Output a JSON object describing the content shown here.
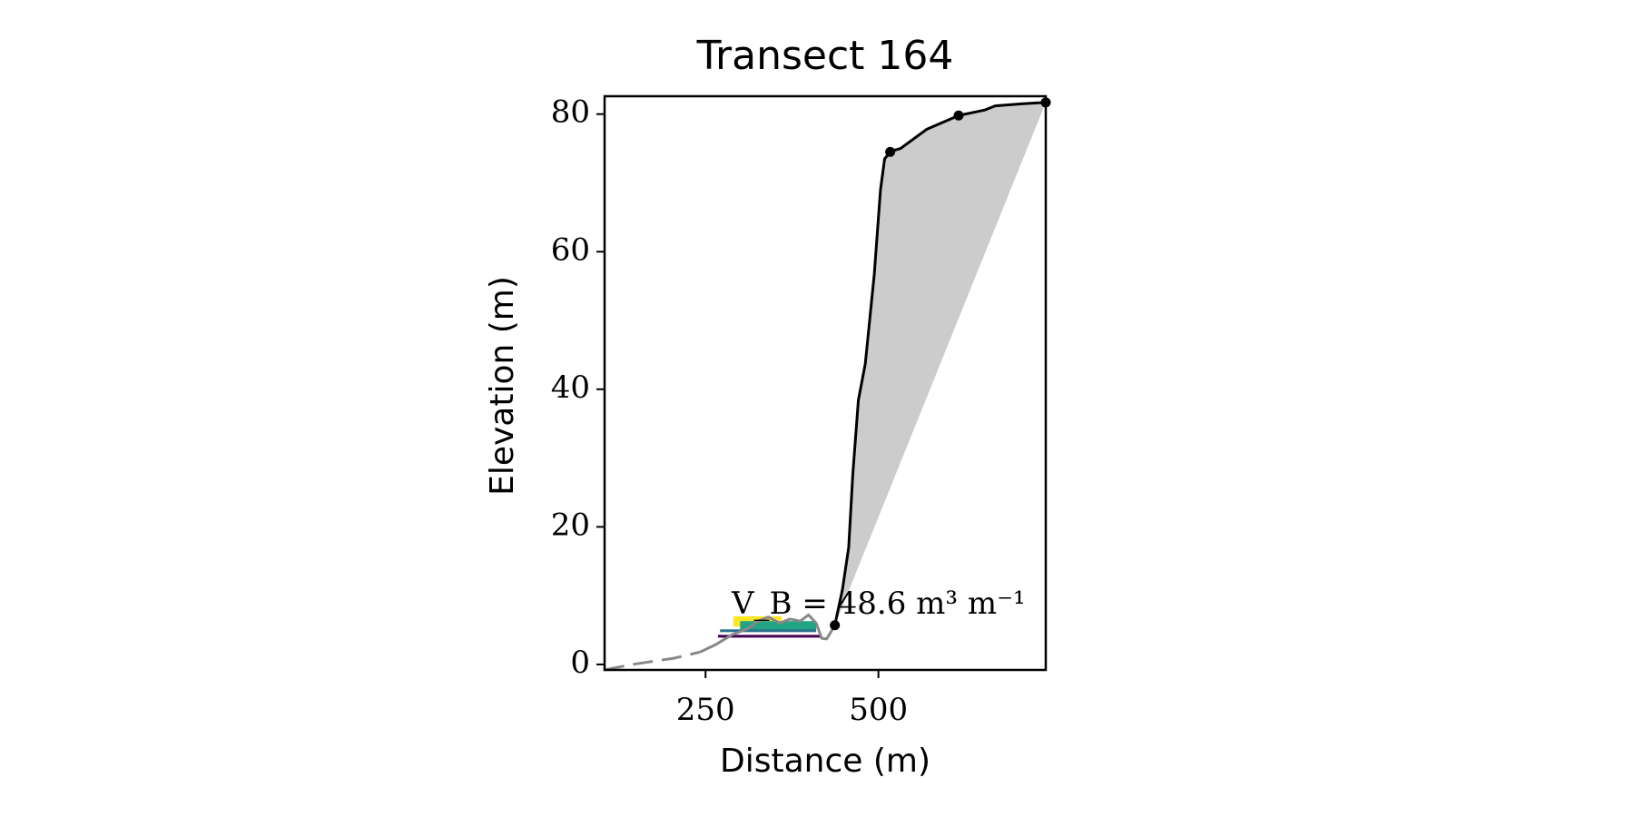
{
  "chart_data": {
    "type": "line",
    "title": "Transect 164",
    "xlabel": "Distance (m)",
    "ylabel": "Elevation (m)",
    "annotation": "V_B = 48.6 m³ m⁻¹",
    "xlim": [
      104,
      742
    ],
    "ylim": [
      -0.8,
      82.6
    ],
    "xticks": [
      250,
      500
    ],
    "yticks": [
      0,
      20,
      40,
      60,
      80
    ],
    "series": [
      {
        "color": "#888888",
        "dash": true,
        "x": [
          104,
          144,
          204,
          242
        ],
        "values": [
          -0.8,
          0,
          0.9,
          1.8
        ]
      },
      {
        "color": "#888888",
        "dash": false,
        "x": [
          242,
          265,
          288,
          311,
          326,
          341,
          357,
          372,
          387,
          399,
          410,
          418,
          425,
          433,
          437
        ],
        "values": [
          1.8,
          2.9,
          4.3,
          5.2,
          6.3,
          6.9,
          6.0,
          6.6,
          6.3,
          7.2,
          6.0,
          3.8,
          3.7,
          5.0,
          5.7
        ]
      },
      {
        "color": "#000000",
        "dash": false,
        "fill": "#cccccc",
        "x": [
          437,
          448,
          457,
          463,
          471,
          481,
          494,
          503,
          509,
          518,
          532,
          570,
          616,
          654,
          669,
          707,
          742
        ],
        "values": [
          5.7,
          10.9,
          17,
          27.7,
          38.4,
          43.7,
          56.7,
          69,
          73.5,
          74.6,
          75,
          77.8,
          79.8,
          80.6,
          81.2,
          81.5,
          81.7
        ]
      }
    ],
    "points": {
      "color": "#000000",
      "x": [
        437,
        517,
        616,
        742
      ],
      "values": [
        5.7,
        74.5,
        79.8,
        81.7
      ]
    },
    "bands": [
      {
        "color": "#fde725",
        "x": [
          290,
          360
        ],
        "y": [
          5.5,
          7.0
        ]
      },
      {
        "color": "#21a585",
        "x": [
          300,
          410
        ],
        "y": [
          5.0,
          6.3
        ]
      },
      {
        "color": "#2c728e",
        "x": [
          271,
          410
        ],
        "y": [
          4.7,
          5.1
        ]
      },
      {
        "color": "#440154",
        "x": [
          268,
          418
        ],
        "y": [
          3.9,
          4.3
        ]
      }
    ]
  }
}
